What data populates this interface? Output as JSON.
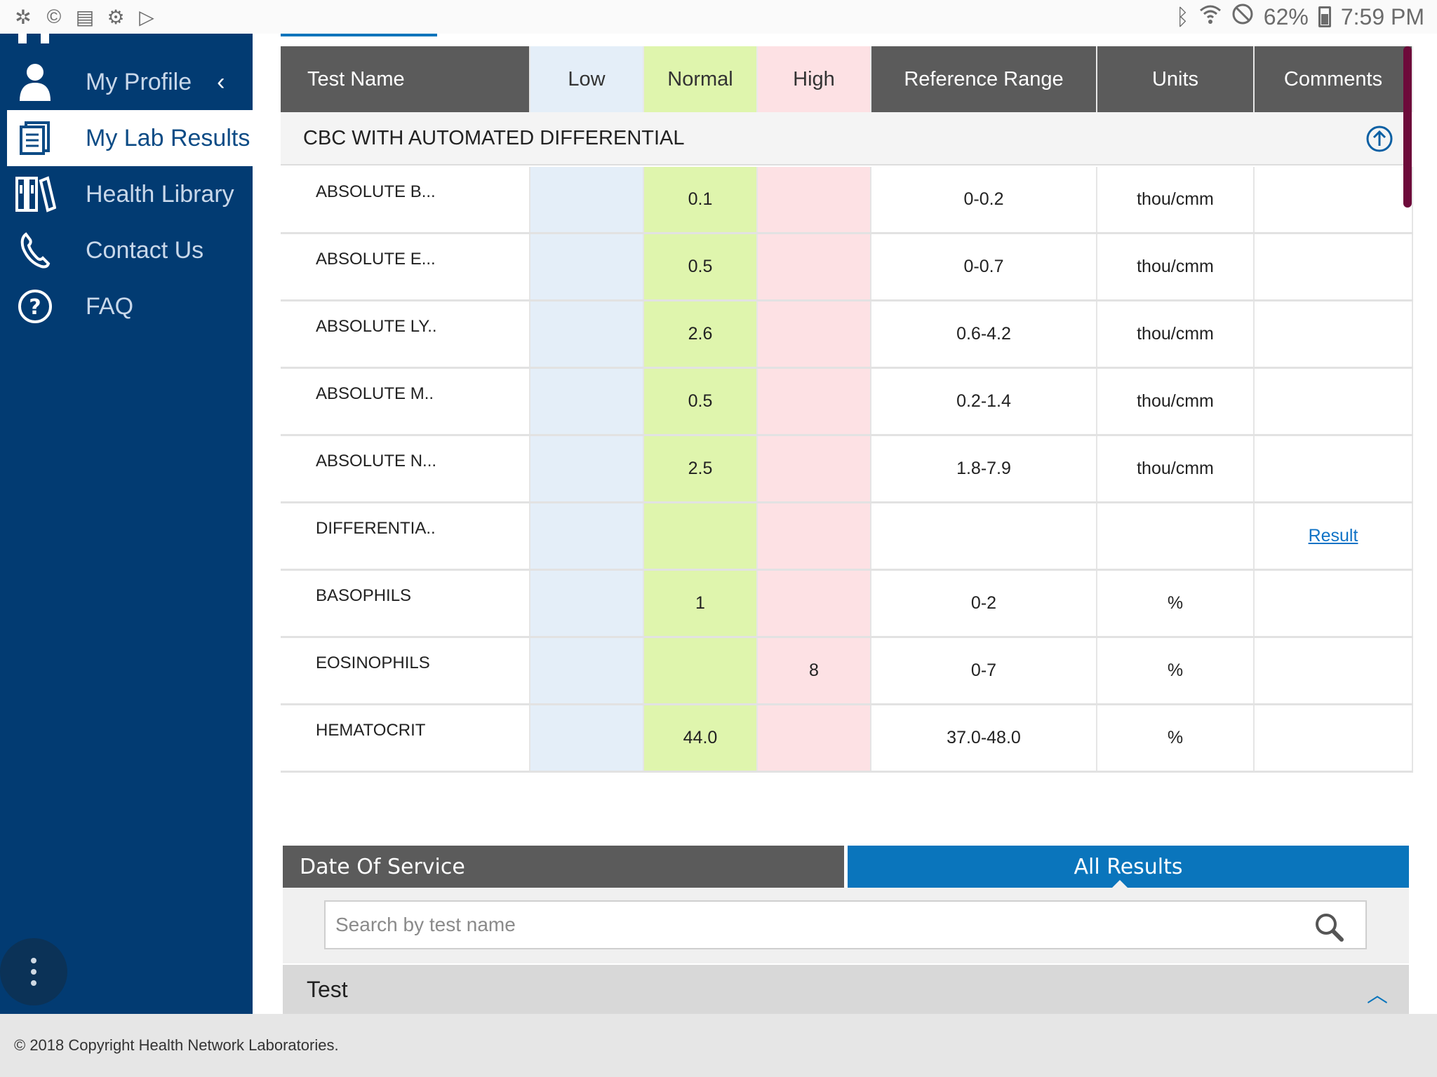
{
  "status_bar": {
    "battery": "62%",
    "time": "7:59 PM"
  },
  "sidebar": {
    "items": [
      {
        "label": "My Profile",
        "icon": "person-icon"
      },
      {
        "label": "My Lab Results",
        "icon": "document-icon"
      },
      {
        "label": "Health Library",
        "icon": "books-icon"
      },
      {
        "label": "Contact Us",
        "icon": "phone-icon"
      },
      {
        "label": "FAQ",
        "icon": "question-icon"
      }
    ]
  },
  "table": {
    "headers": {
      "test_name": "Test Name",
      "low": "Low",
      "normal": "Normal",
      "high": "High",
      "reference_range": "Reference Range",
      "units": "Units",
      "comments": "Comments"
    },
    "section_title": "CBC WITH AUTOMATED DIFFERENTIAL",
    "rows": [
      {
        "name": "ABSOLUTE B...",
        "low": "",
        "normal": "0.1",
        "high": "",
        "range": "0-0.2",
        "units": "thou/cmm",
        "comment": ""
      },
      {
        "name": "ABSOLUTE E...",
        "low": "",
        "normal": "0.5",
        "high": "",
        "range": "0-0.7",
        "units": "thou/cmm",
        "comment": ""
      },
      {
        "name": "ABSOLUTE LY..",
        "low": "",
        "normal": "2.6",
        "high": "",
        "range": "0.6-4.2",
        "units": "thou/cmm",
        "comment": ""
      },
      {
        "name": "ABSOLUTE M..",
        "low": "",
        "normal": "0.5",
        "high": "",
        "range": "0.2-1.4",
        "units": "thou/cmm",
        "comment": ""
      },
      {
        "name": "ABSOLUTE N...",
        "low": "",
        "normal": "2.5",
        "high": "",
        "range": "1.8-7.9",
        "units": "thou/cmm",
        "comment": ""
      },
      {
        "name": "DIFFERENTIA..",
        "low": "",
        "normal": "",
        "high": "",
        "range": "",
        "units": "",
        "comment": "Result"
      },
      {
        "name": "BASOPHILS",
        "low": "",
        "normal": "1",
        "high": "",
        "range": "0-2",
        "units": "%",
        "comment": ""
      },
      {
        "name": "EOSINOPHILS",
        "low": "",
        "normal": "",
        "high": "8",
        "range": "0-7",
        "units": "%",
        "comment": ""
      },
      {
        "name": "HEMATOCRIT",
        "low": "",
        "normal": "44.0",
        "high": "",
        "range": "37.0-48.0",
        "units": "%",
        "comment": ""
      }
    ]
  },
  "filters": {
    "date_of_service": "Date Of Service",
    "all_results": "All Results",
    "search_placeholder": "Search by test name",
    "test_header": "Test"
  },
  "footer": {
    "copyright": "© 2018 Copyright Health Network Laboratories."
  },
  "colors": {
    "sidebar_bg": "#023b72",
    "accent_blue": "#0a75bc",
    "header_gray": "#5b5b5b",
    "low_bg": "#e4eef8",
    "normal_bg": "#dff5ad",
    "high_bg": "#fde1e4"
  }
}
